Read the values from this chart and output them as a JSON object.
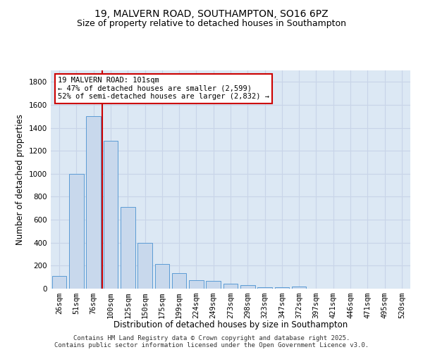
{
  "title1": "19, MALVERN ROAD, SOUTHAMPTON, SO16 6PZ",
  "title2": "Size of property relative to detached houses in Southampton",
  "xlabel": "Distribution of detached houses by size in Southampton",
  "ylabel": "Number of detached properties",
  "categories": [
    "26sqm",
    "51sqm",
    "76sqm",
    "100sqm",
    "125sqm",
    "150sqm",
    "175sqm",
    "199sqm",
    "224sqm",
    "249sqm",
    "273sqm",
    "298sqm",
    "323sqm",
    "347sqm",
    "372sqm",
    "397sqm",
    "421sqm",
    "446sqm",
    "471sqm",
    "495sqm",
    "520sqm"
  ],
  "values": [
    110,
    1000,
    1500,
    1290,
    710,
    400,
    215,
    135,
    75,
    65,
    40,
    30,
    15,
    10,
    20,
    0,
    0,
    0,
    0,
    0,
    0
  ],
  "bar_color": "#c8d8ec",
  "bar_edge_color": "#5b9bd5",
  "bar_width": 0.85,
  "vline_x": 2.5,
  "vline_color": "#cc0000",
  "annotation_text": "19 MALVERN ROAD: 101sqm\n← 47% of detached houses are smaller (2,599)\n52% of semi-detached houses are larger (2,832) →",
  "annotation_box_color": "#ffffff",
  "annotation_box_edge": "#cc0000",
  "ylim": [
    0,
    1900
  ],
  "yticks": [
    0,
    200,
    400,
    600,
    800,
    1000,
    1200,
    1400,
    1600,
    1800
  ],
  "grid_color": "#c8d4e8",
  "bg_color": "#dce8f4",
  "footer_text": "Contains HM Land Registry data © Crown copyright and database right 2025.\nContains public sector information licensed under the Open Government Licence v3.0.",
  "title1_fontsize": 10,
  "title2_fontsize": 9,
  "tick_fontsize": 7.5,
  "ylabel_fontsize": 8.5,
  "xlabel_fontsize": 8.5,
  "footer_fontsize": 6.5,
  "annot_fontsize": 7.5
}
